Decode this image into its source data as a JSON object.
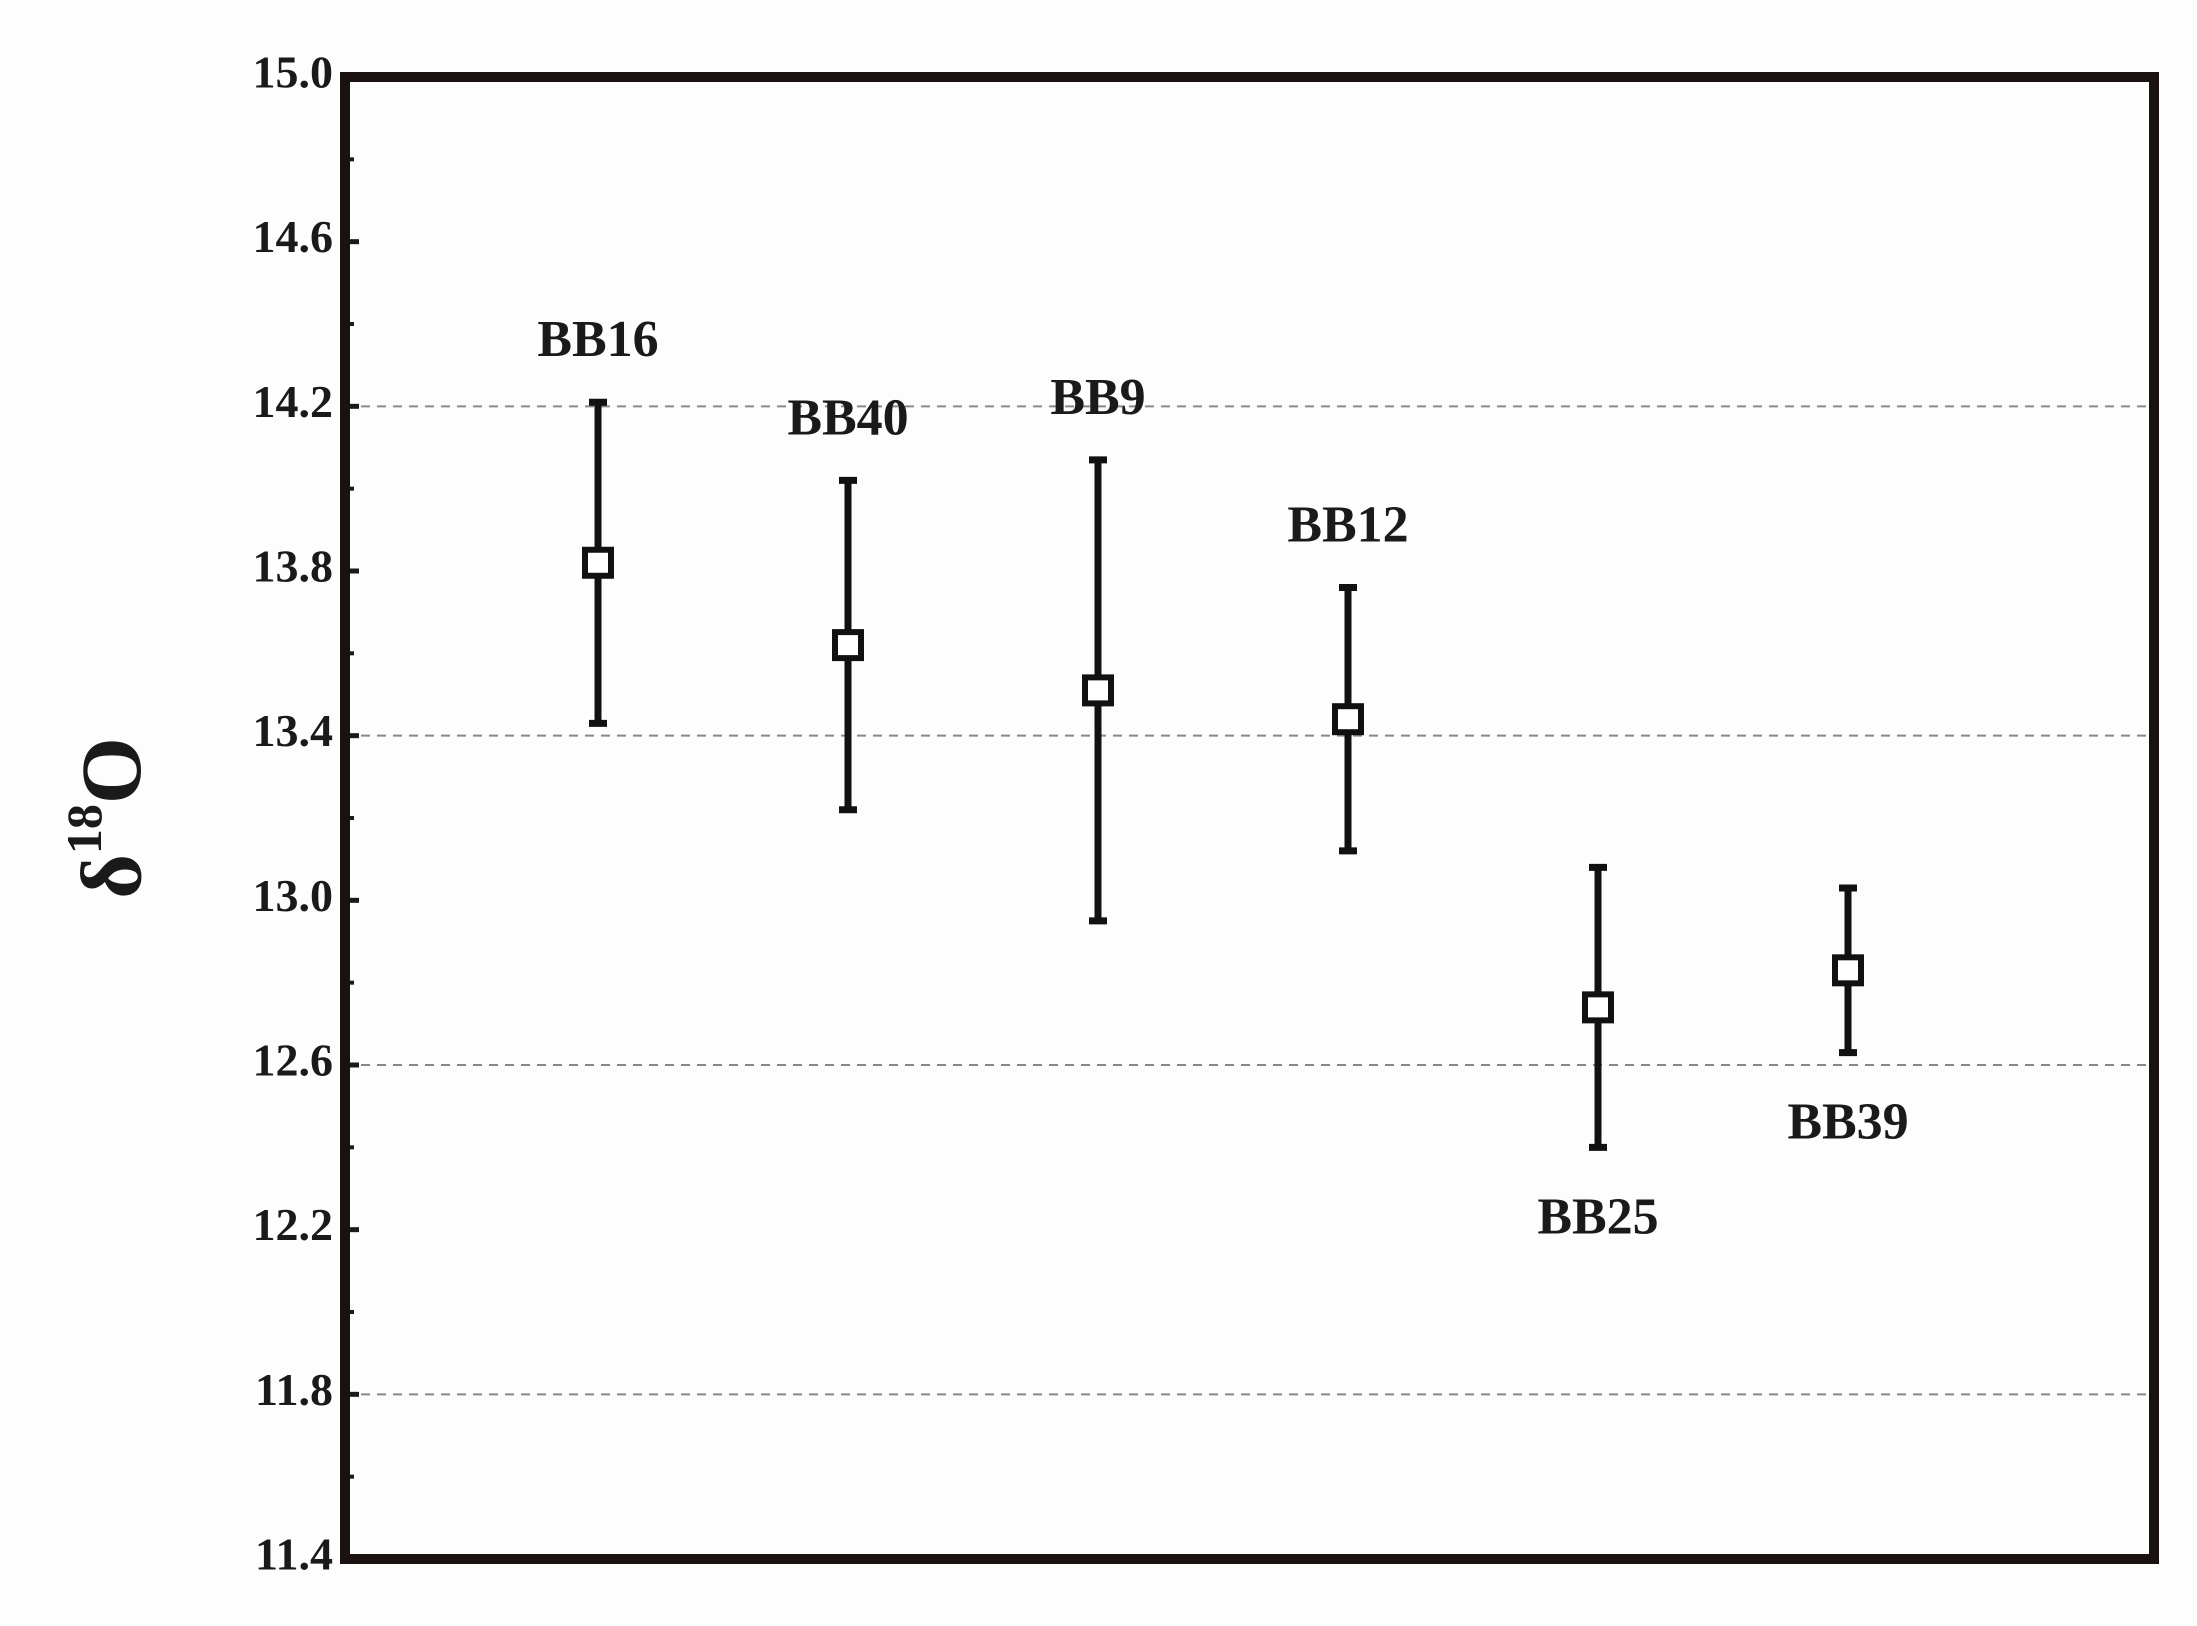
{
  "chart_data": {
    "type": "errorbar",
    "ylabel": {
      "symbol": "δ",
      "superscript": "18",
      "element": "O"
    },
    "categories": [
      "BB16",
      "BB40",
      "BB9",
      "BB12",
      "BB25",
      "BB39"
    ],
    "values": [
      13.82,
      13.62,
      13.51,
      13.44,
      12.74,
      12.83
    ],
    "errors": [
      0.39,
      0.4,
      0.56,
      0.32,
      0.34,
      0.2
    ],
    "label_position": [
      "above",
      "above",
      "above",
      "above",
      "below",
      "below"
    ],
    "color": "#111111",
    "ylim": [
      11.4,
      15.0
    ],
    "yticks": [
      {
        "value": 11.4,
        "label": "11.4"
      },
      11.8,
      12.2,
      12.6,
      {
        "value": 13.0,
        "label": "13.0"
      },
      13.4,
      13.8,
      14.2,
      14.6,
      {
        "value": 15.0,
        "label": "15.0"
      }
    ],
    "minor_yticks": [
      11.6,
      12.0,
      12.4,
      12.8,
      13.2,
      13.6,
      14.0,
      14.4,
      14.8
    ],
    "grid_lines": [
      11.8,
      12.6,
      13.4,
      14.2
    ]
  }
}
